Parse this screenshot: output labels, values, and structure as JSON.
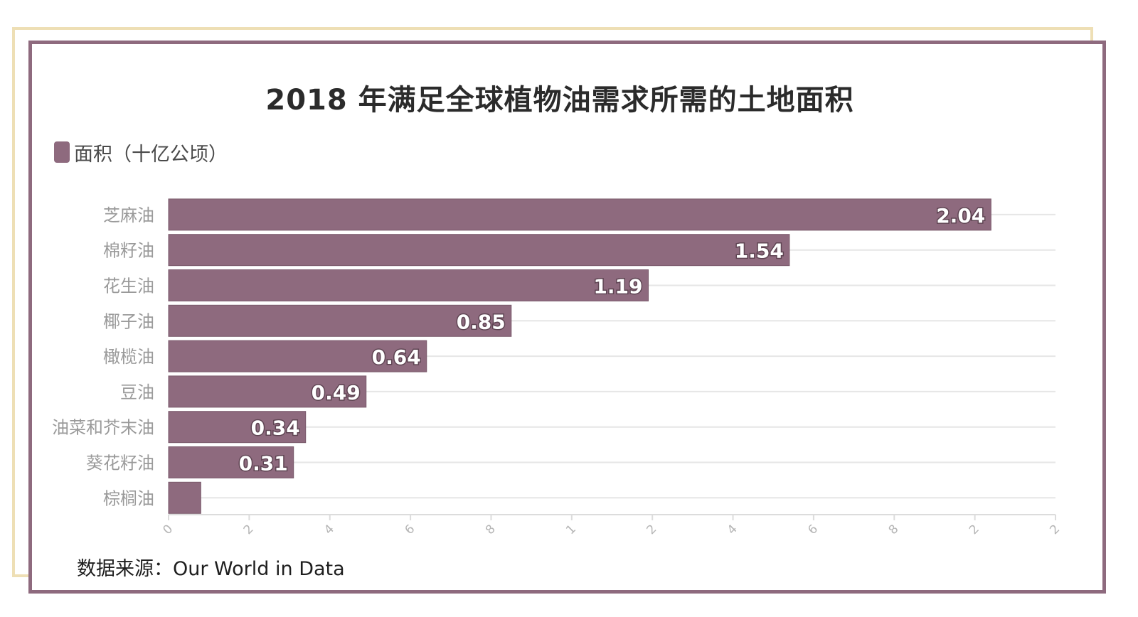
{
  "title": "2018 年满足全球植物油需求所需的土地面积",
  "source": "数据来源：Our World in Data",
  "colors": {
    "bar": "#8e6a7e",
    "bar_edge": "#7a5a6c",
    "grid": "#e6e6e6",
    "category_text": "#9a9a9a",
    "tick_text": "#b5b5b5",
    "value_text": "#ffffff"
  },
  "chart_data": {
    "type": "bar",
    "orientation": "horizontal",
    "categories": [
      "芝麻油",
      "棉籽油",
      "花生油",
      "椰子油",
      "橄榄油",
      "豆油",
      "油菜和芥末油",
      "葵花籽油",
      "棕榈油"
    ],
    "series": [
      {
        "name": "面积（十亿公顷）",
        "values": [
          2.04,
          1.54,
          1.19,
          0.85,
          0.64,
          0.49,
          0.34,
          0.31,
          0.08
        ]
      }
    ],
    "data_labels": [
      "2.04",
      "1.54",
      "1.19",
      "0.85",
      "0.64",
      "0.49",
      "0.34",
      "0.31",
      ""
    ],
    "x_ticks": [
      "0",
      "2",
      "4",
      "6",
      "8",
      "1",
      "2",
      "4",
      "6",
      "8",
      "2",
      "2"
    ],
    "xlim": [
      0,
      2.2
    ],
    "grid": true,
    "legend_position": "top-left"
  }
}
